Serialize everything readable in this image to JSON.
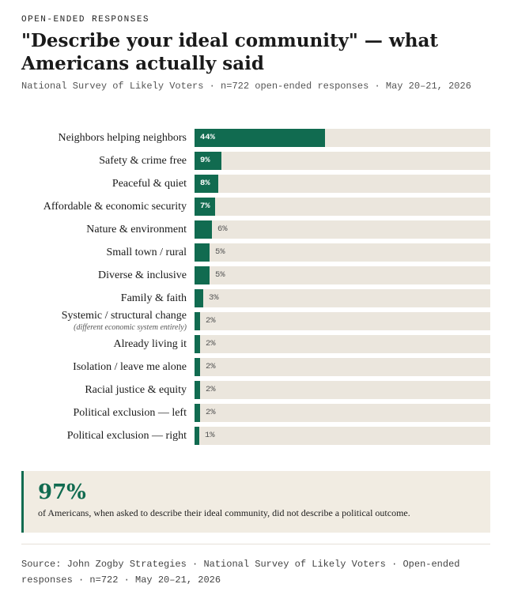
{
  "kicker": "OPEN-ENDED RESPONSES",
  "title": "\"Describe your ideal community\" — what Americans actually said",
  "subtitle": "National Survey of Likely Voters · n=722 open-ended responses · May 20–21, 2026",
  "chart_data": {
    "type": "bar",
    "orientation": "horizontal",
    "xlim": [
      0,
      100
    ],
    "value_suffix": "%",
    "categories": [
      "Neighbors helping neighbors",
      "Safety & crime free",
      "Peaceful & quiet",
      "Affordable & economic security",
      "Nature & environment",
      "Small town / rural",
      "Diverse & inclusive",
      "Family & faith",
      "Systemic / structural change",
      "Already living it",
      "Isolation / leave me alone",
      "Racial justice & equity",
      "Political exclusion — left",
      "Political exclusion — right"
    ],
    "notes": [
      "",
      "",
      "",
      "",
      "",
      "",
      "",
      "",
      "(different economic system entirely)",
      "",
      "",
      "",
      "",
      ""
    ],
    "values": [
      44,
      9,
      8,
      7,
      6,
      5,
      5,
      3,
      2,
      2,
      2,
      2,
      2,
      1
    ],
    "value_labels": [
      "44%",
      "9%",
      "8%",
      "7%",
      "6%",
      "5%",
      "5%",
      "3%",
      "2%",
      "2%",
      "2%",
      "2%",
      "2%",
      "1%"
    ],
    "bar_color": "#116b50",
    "track_color": "#ebe6dd"
  },
  "callout": {
    "stat": "97%",
    "text": "of Americans, when asked to describe their ideal community, did not describe a political outcome."
  },
  "source": "Source: John Zogby Strategies · National Survey of Likely Voters · Open-ended responses · n=722 · May 20–21, 2026",
  "colors": {
    "accent": "#116b50",
    "callout_bg": "#f1ece2"
  }
}
